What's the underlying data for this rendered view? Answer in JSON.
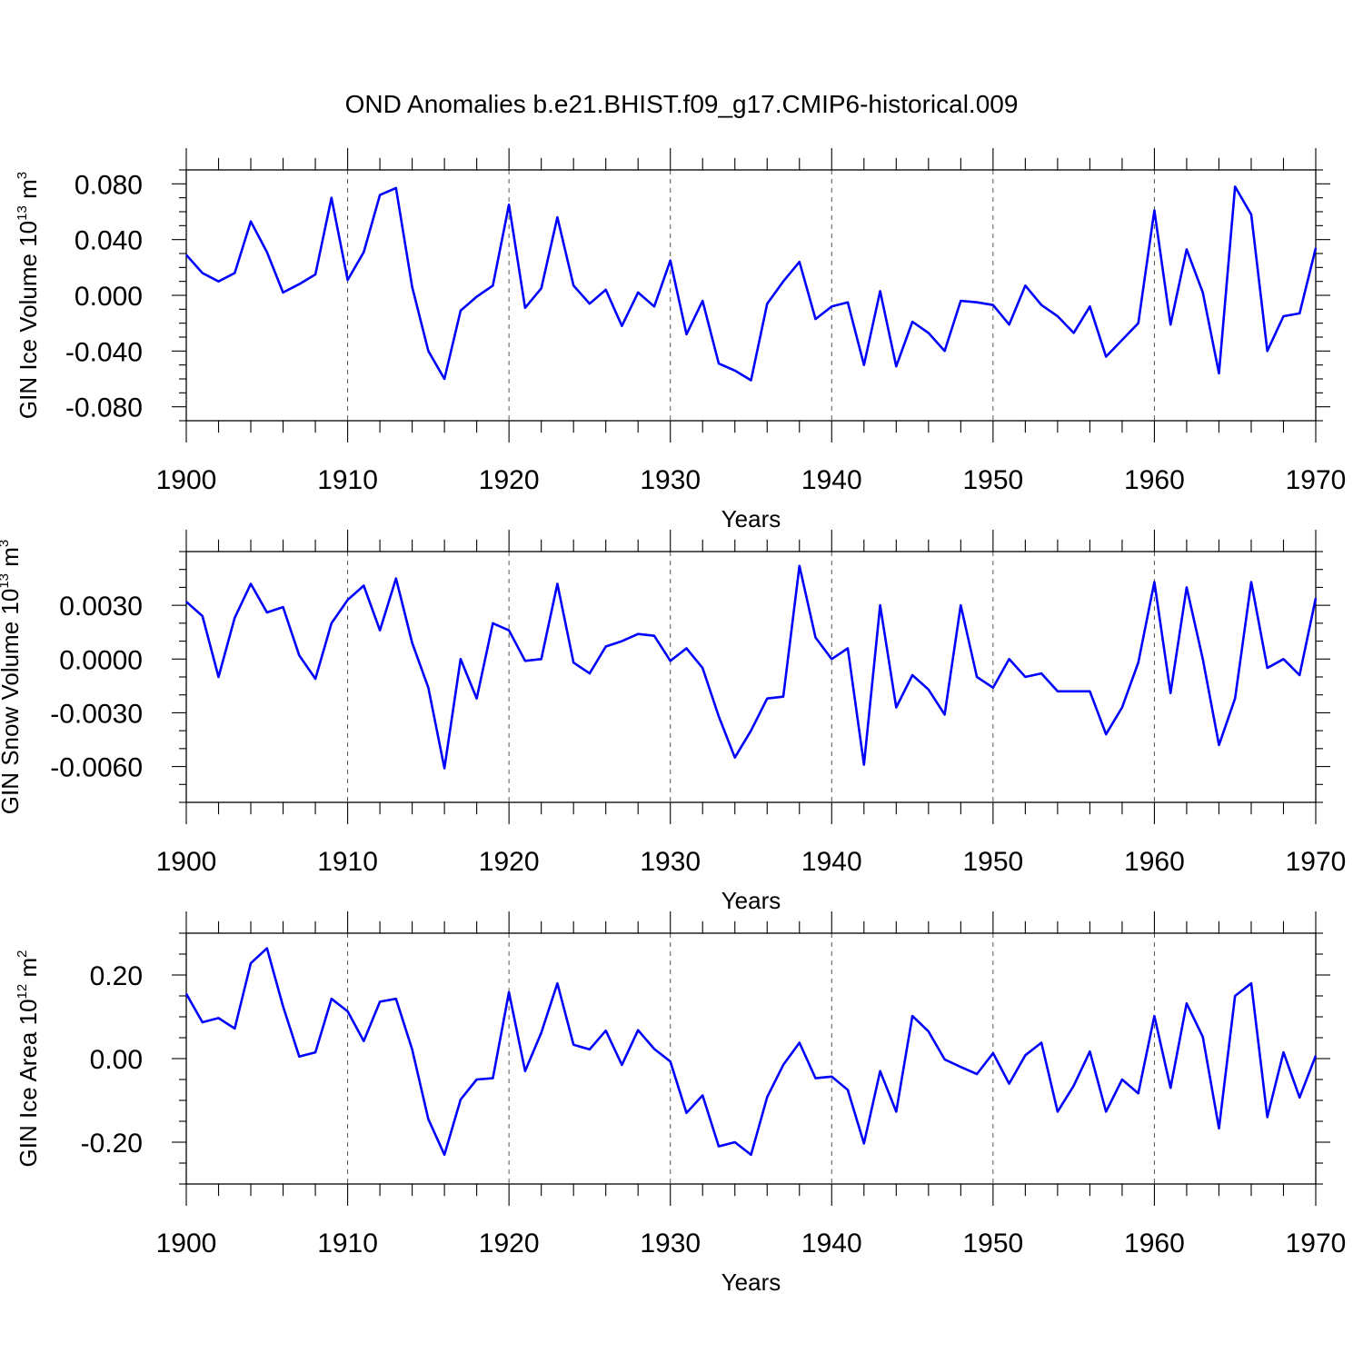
{
  "figure": {
    "title": "OND Anomalies b.e21.BHIST.f09_g17.CMIP6-historical.009",
    "line_color": "#0000ff"
  },
  "chart_data": [
    {
      "type": "line",
      "name": "ice-volume",
      "ylabel_main": "GIN Ice Volume 10",
      "ylabel_exp": "13",
      "ylabel_unit": " m",
      "ylabel_unit_exp": "3",
      "xlabel": "Years",
      "xlim": [
        1900,
        1970
      ],
      "ylim": [
        -0.09,
        0.09
      ],
      "xticks": [
        1900,
        1910,
        1920,
        1930,
        1940,
        1950,
        1960,
        1970
      ],
      "xtick_labels": [
        "1900",
        "1910",
        "1920",
        "1930",
        "1940",
        "1950",
        "1960",
        "1970"
      ],
      "yticks": [
        -0.08,
        -0.04,
        0.0,
        0.04,
        0.08
      ],
      "ytick_labels": [
        "-0.080",
        "-0.040",
        "0.000",
        "0.040",
        "0.080"
      ],
      "yminor_step": 0.01,
      "grid_x": true,
      "x_start": 1900,
      "values": [
        0.029,
        0.016,
        0.01,
        0.016,
        0.053,
        0.031,
        0.002,
        0.008,
        0.015,
        0.07,
        0.011,
        0.031,
        0.072,
        0.077,
        0.006,
        -0.04,
        -0.06,
        -0.011,
        -0.001,
        0.007,
        0.065,
        -0.009,
        0.005,
        0.056,
        0.007,
        -0.006,
        0.004,
        -0.022,
        0.002,
        -0.008,
        0.025,
        -0.028,
        -0.004,
        -0.049,
        -0.054,
        -0.061,
        -0.006,
        0.01,
        0.024,
        -0.017,
        -0.008,
        -0.005,
        -0.05,
        0.003,
        -0.051,
        -0.019,
        -0.027,
        -0.04,
        -0.004,
        -0.005,
        -0.007,
        -0.021,
        0.007,
        -0.007,
        -0.015,
        -0.027,
        -0.008,
        -0.044,
        -0.032,
        -0.02,
        0.061,
        -0.021,
        0.033,
        0.002,
        -0.056,
        0.078,
        0.058,
        -0.04,
        -0.015,
        -0.013,
        0.034
      ]
    },
    {
      "type": "line",
      "name": "snow-volume",
      "ylabel_main": "GIN Snow Volume 10",
      "ylabel_exp": "13",
      "ylabel_unit": " m",
      "ylabel_unit_exp": "3",
      "xlabel": "Years",
      "xlim": [
        1900,
        1970
      ],
      "ylim": [
        -0.008,
        0.006
      ],
      "xticks": [
        1900,
        1910,
        1920,
        1930,
        1940,
        1950,
        1960,
        1970
      ],
      "xtick_labels": [
        "1900",
        "1910",
        "1920",
        "1930",
        "1940",
        "1950",
        "1960",
        "1970"
      ],
      "yticks": [
        -0.006,
        -0.003,
        0.0,
        0.003
      ],
      "ytick_labels": [
        "-0.0060",
        "-0.0030",
        "0.0000",
        "0.0030"
      ],
      "yminor_step": 0.001,
      "grid_x": true,
      "x_start": 1900,
      "values": [
        0.0032,
        0.0024,
        -0.001,
        0.0023,
        0.0042,
        0.0026,
        0.0029,
        0.0002,
        -0.0011,
        0.002,
        0.0033,
        0.0041,
        0.0016,
        0.0045,
        0.0009,
        -0.0016,
        -0.0061,
        0.0,
        -0.0022,
        0.002,
        0.0016,
        -0.0001,
        0.0,
        0.0042,
        -0.0002,
        -0.0008,
        0.0007,
        0.001,
        0.0014,
        0.0013,
        -0.0001,
        0.0006,
        -0.0005,
        -0.0032,
        -0.0055,
        -0.004,
        -0.0022,
        -0.0021,
        0.0052,
        0.0012,
        0.0,
        0.0006,
        -0.0059,
        0.003,
        -0.0027,
        -0.0009,
        -0.0017,
        -0.0031,
        0.003,
        -0.001,
        -0.0016,
        0.0,
        -0.001,
        -0.0008,
        -0.0018,
        -0.0018,
        -0.0018,
        -0.0042,
        -0.0027,
        -0.0002,
        0.0043,
        -0.0019,
        0.004,
        0.0,
        -0.0048,
        -0.0022,
        0.0043,
        -0.0005,
        0.0,
        -0.0009,
        0.0034
      ]
    },
    {
      "type": "line",
      "name": "ice-area",
      "ylabel_main": "GIN Ice Area 10",
      "ylabel_exp": "12",
      "ylabel_unit": " m",
      "ylabel_unit_exp": "2",
      "xlabel": "Years",
      "xlim": [
        1900,
        1970
      ],
      "ylim": [
        -0.3,
        0.3
      ],
      "xticks": [
        1900,
        1910,
        1920,
        1930,
        1940,
        1950,
        1960,
        1970
      ],
      "xtick_labels": [
        "1900",
        "1910",
        "1920",
        "1930",
        "1940",
        "1950",
        "1960",
        "1970"
      ],
      "yticks": [
        -0.2,
        0.0,
        0.2
      ],
      "ytick_labels": [
        "-0.20",
        "0.00",
        "0.20"
      ],
      "yminor_step": 0.05,
      "grid_x": true,
      "x_start": 1900,
      "values": [
        0.155,
        0.087,
        0.097,
        0.072,
        0.228,
        0.264,
        0.125,
        0.005,
        0.015,
        0.143,
        0.113,
        0.042,
        0.136,
        0.143,
        0.022,
        -0.145,
        -0.23,
        -0.098,
        -0.05,
        -0.047,
        0.159,
        -0.03,
        0.062,
        0.18,
        0.033,
        0.022,
        0.067,
        -0.015,
        0.068,
        0.023,
        -0.007,
        -0.13,
        -0.088,
        -0.21,
        -0.2,
        -0.23,
        -0.092,
        -0.015,
        0.038,
        -0.047,
        -0.043,
        -0.075,
        -0.203,
        -0.03,
        -0.127,
        0.102,
        0.065,
        -0.002,
        -0.02,
        -0.037,
        0.013,
        -0.06,
        0.008,
        0.038,
        -0.127,
        -0.065,
        0.017,
        -0.127,
        -0.05,
        -0.083,
        0.102,
        -0.07,
        0.132,
        0.052,
        -0.167,
        0.15,
        0.18,
        -0.14,
        0.015,
        -0.093,
        0.007
      ]
    }
  ]
}
